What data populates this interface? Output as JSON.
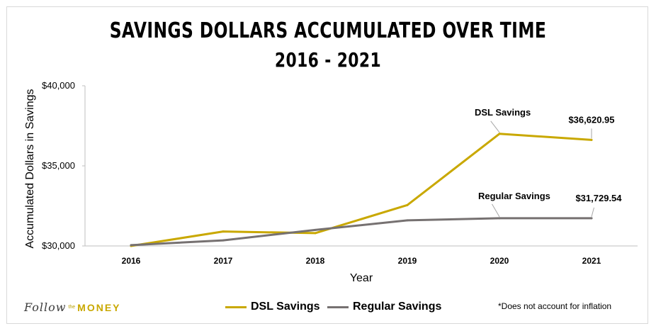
{
  "chart_data": {
    "type": "line",
    "title": "SAVINGS DOLLARS ACCUMULATED OVER TIME",
    "subtitle": "2016 - 2021",
    "xlabel": "Year",
    "ylabel": "Accumulated Dollars in Savings",
    "categories": [
      "2016",
      "2017",
      "2018",
      "2019",
      "2020",
      "2021"
    ],
    "ylim": [
      30000,
      40000
    ],
    "yticks": [
      {
        "value": 30000,
        "label": "$30,000"
      },
      {
        "value": 35000,
        "label": "$35,000"
      },
      {
        "value": 40000,
        "label": "$40,000"
      }
    ],
    "grid": false,
    "legend": "bottom",
    "series": [
      {
        "name": "DSL Savings",
        "color": "#c9a800",
        "values": [
          30000,
          30900,
          30800,
          32550,
          37000,
          36620.95
        ]
      },
      {
        "name": "Regular Savings",
        "color": "#767171",
        "values": [
          30050,
          30350,
          31000,
          31600,
          31729.54,
          31729.54
        ]
      }
    ],
    "annotations": [
      {
        "text": "DSL Savings",
        "series": 0,
        "index": 4
      },
      {
        "text": "$36,620.95",
        "series": 0,
        "index": 5
      },
      {
        "text": "Regular Savings",
        "series": 1,
        "index": 4
      },
      {
        "text": "$31,729.54",
        "series": 1,
        "index": 5
      }
    ]
  },
  "note": "*Does not account for inflation",
  "logo": {
    "script": "Follow",
    "small": "the",
    "word": "MONEY"
  }
}
